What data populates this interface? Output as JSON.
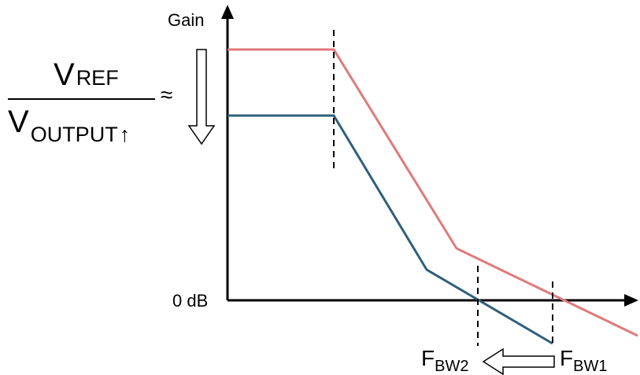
{
  "diagram": {
    "y_axis_label": "Gain",
    "x_axis_label": "0 dB",
    "formula": {
      "numerator_main": "V",
      "numerator_sub": "REF",
      "denominator_main": "V",
      "denominator_sub": "OUTPUT",
      "denominator_arrow": "↑",
      "approx_symbol": "≈"
    },
    "markers": {
      "fbw2_main": "F",
      "fbw2_sub": "BW2",
      "fbw1_main": "F",
      "fbw1_sub": "BW1"
    },
    "colors": {
      "curve_before": "#e07a7a",
      "curve_after": "#2f5f7a",
      "axis": "#000000"
    }
  }
}
